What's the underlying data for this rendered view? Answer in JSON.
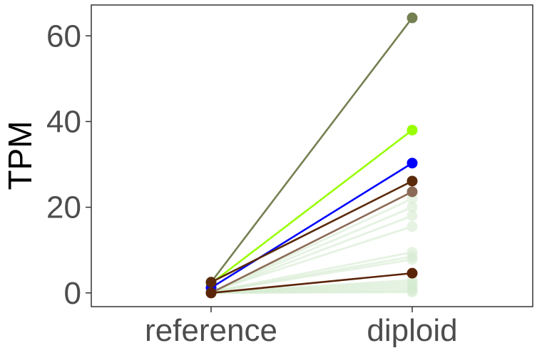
{
  "chart_data": {
    "type": "line",
    "title": "",
    "xlabel": "",
    "ylabel": "TPM",
    "categories": [
      "reference",
      "diploid"
    ],
    "y_ticks": [
      "0",
      "20",
      "40",
      "60"
    ],
    "ylim": [
      -3.2,
      67.2
    ],
    "grid": false,
    "legend": "none",
    "background_series": {
      "color": "#d6ecd2",
      "opacity": 0.6,
      "lines": [
        [
          0.2,
          22.0
        ],
        [
          0.3,
          20.0
        ],
        [
          0.2,
          18.0
        ],
        [
          0.4,
          15.5
        ],
        [
          0.3,
          9.5
        ],
        [
          0.2,
          8.5
        ],
        [
          0.2,
          7.8
        ],
        [
          0.1,
          3.0
        ],
        [
          0.1,
          2.5
        ],
        [
          0.1,
          2.0
        ],
        [
          0.1,
          1.5
        ],
        [
          0.1,
          1.0
        ],
        [
          0.0,
          0.5
        ],
        [
          0.0,
          0.2
        ]
      ]
    },
    "series": [
      {
        "values": [
          2.5,
          64.2
        ],
        "color": "#758052"
      },
      {
        "values": [
          2.2,
          38.0
        ],
        "color": "#99ff00"
      },
      {
        "values": [
          1.2,
          30.3
        ],
        "color": "#0000ff"
      },
      {
        "values": [
          2.5,
          26.1
        ],
        "color": "#5a2a0a"
      },
      {
        "values": [
          0.0,
          23.6
        ],
        "color": "#8b6a55"
      },
      {
        "values": [
          0.0,
          4.6
        ],
        "color": "#5a2408"
      }
    ]
  }
}
